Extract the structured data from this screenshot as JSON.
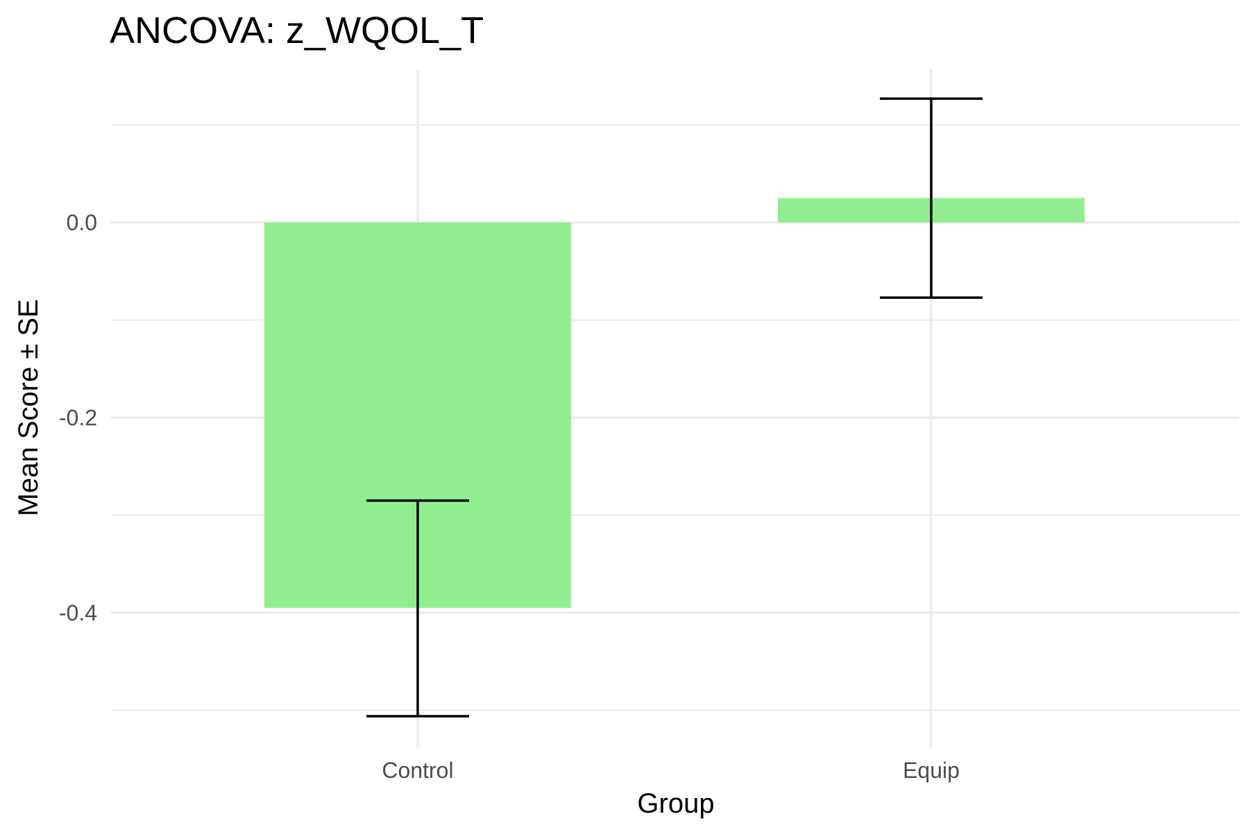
{
  "chart_data": {
    "type": "bar",
    "title": "ANCOVA: z_WQOL_T",
    "xlabel": "Group",
    "ylabel": "Mean Score ± SE",
    "categories": [
      "Control",
      "Equip"
    ],
    "values": [
      -0.395,
      0.025
    ],
    "error_bars": [
      {
        "low": -0.506,
        "high": -0.285
      },
      {
        "low": -0.077,
        "high": 0.127
      }
    ],
    "ylim": [
      -0.538,
      0.157
    ],
    "yticks": [
      {
        "value": 0.0,
        "label": "0.0"
      },
      {
        "value": -0.2,
        "label": "-0.2"
      },
      {
        "value": -0.4,
        "label": "-0.4"
      }
    ],
    "minor_yticks": [
      0.1,
      -0.1,
      -0.3,
      -0.5
    ],
    "grid": true,
    "legend": "none",
    "colors": {
      "bar": "#90EE90",
      "errorbar": "#000000",
      "grid": "#ebebeb"
    }
  }
}
